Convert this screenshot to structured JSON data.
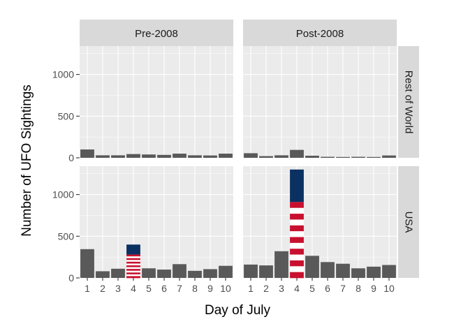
{
  "chart_data": {
    "type": "bar",
    "facet_cols": [
      "Pre-2008",
      "Post-2008"
    ],
    "facet_rows": [
      "Rest of World",
      "USA"
    ],
    "x": [
      1,
      2,
      3,
      4,
      5,
      6,
      7,
      8,
      9,
      10
    ],
    "xlabel": "Day of July",
    "ylabel": "Number of UFO Sightings",
    "yticks": [
      0,
      500,
      1000
    ],
    "ylim": [
      0,
      1340
    ],
    "highlight_day": 4,
    "colors": {
      "bar": "#595959",
      "panel": "#ebebeb",
      "strip": "#d9d9d9",
      "flag_blue": "#0a3161",
      "flag_red": "#c8102e",
      "flag_white": "#ffffff"
    },
    "panels": [
      {
        "row": "Rest of World",
        "col": "Pre-2008",
        "values": [
          100,
          30,
          30,
          45,
          40,
          35,
          50,
          30,
          28,
          50
        ]
      },
      {
        "row": "Rest of World",
        "col": "Post-2008",
        "values": [
          55,
          20,
          30,
          95,
          25,
          12,
          10,
          12,
          10,
          28
        ]
      },
      {
        "row": "USA",
        "col": "Pre-2008",
        "values": [
          345,
          80,
          110,
          400,
          115,
          100,
          165,
          85,
          105,
          145
        ]
      },
      {
        "row": "USA",
        "col": "Post-2008",
        "values": [
          160,
          150,
          320,
          1300,
          265,
          190,
          170,
          115,
          135,
          155
        ]
      }
    ]
  }
}
